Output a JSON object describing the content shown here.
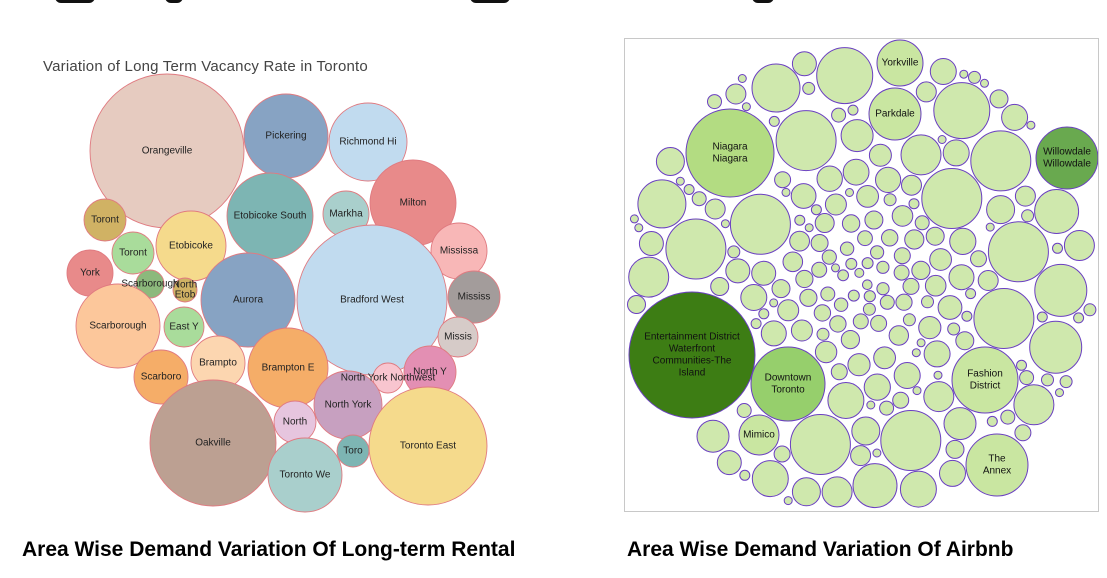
{
  "captions": {
    "left": "Area Wise Demand Variation Of Long-term Rental",
    "right": "Area Wise Demand Variation Of Airbnb"
  },
  "chart_data": [
    {
      "type": "bubble",
      "title": "Variation of Long Term Vacancy Rate in Toronto",
      "bubbles": [
        {
          "label": "Orangeville",
          "color": "#e6cbc0"
        },
        {
          "label": "Pickering",
          "color": "#87a3c3"
        },
        {
          "label": "Richmond Hi",
          "color": "#c1dbef"
        },
        {
          "label": "Etobicoke South",
          "color": "#7db5b3"
        },
        {
          "label": "Markha",
          "color": "#a9cfcc"
        },
        {
          "label": "Milton",
          "color": "#e88a8a"
        },
        {
          "label": "Toront",
          "color": "#d0b264"
        },
        {
          "label": "Etobicoke",
          "color": "#f5da8c"
        },
        {
          "label": "Toront",
          "color": "#a9dc9b"
        },
        {
          "label": "Mississa",
          "color": "#f8b7b7"
        },
        {
          "label": "York",
          "color": "#e88a8a"
        },
        {
          "label": "Scarborough",
          "color": "#8cb97c"
        },
        {
          "label": "North Etob",
          "color": "#d0b264"
        },
        {
          "label": "Aurora",
          "color": "#87a3c3"
        },
        {
          "label": "Bradford West",
          "color": "#c1dbef"
        },
        {
          "label": "Mississ",
          "color": "#a39c9b"
        },
        {
          "label": "Scarborough",
          "color": "#fcc79b"
        },
        {
          "label": "East Y",
          "color": "#a9dc9b"
        },
        {
          "label": "Missis",
          "color": "#d6cbc8"
        },
        {
          "label": "Brampto",
          "color": "#fcd6b0"
        },
        {
          "label": "Brampton E",
          "color": "#f5ad68"
        },
        {
          "label": "Scarboro",
          "color": "#f5ad68"
        },
        {
          "label": "North York Northwest",
          "color": "#f8c5cf"
        },
        {
          "label": "North Y",
          "color": "#e38fb3"
        },
        {
          "label": "North York",
          "color": "#c7a0c0"
        },
        {
          "label": "Oakville",
          "color": "#bca092"
        },
        {
          "label": "North",
          "color": "#e6c5de"
        },
        {
          "label": "Toro",
          "color": "#7db5b3"
        },
        {
          "label": "Toronto East",
          "color": "#f5da8c"
        },
        {
          "label": "Toronto We",
          "color": "#a9cfcc"
        }
      ]
    },
    {
      "type": "bubble",
      "bubbles": [
        {
          "label": "Yorkville",
          "lines": [
            "Yorkville"
          ],
          "color": "#c9e6a1"
        },
        {
          "label": "Parkdale",
          "lines": [
            "Parkdale"
          ],
          "color": "#c9e6a1"
        },
        {
          "label": "Niagara Niagara",
          "lines": [
            "Niagara",
            "Niagara"
          ],
          "color": "#b3dc82"
        },
        {
          "label": "Willowdale Willowdale",
          "lines": [
            "Willowdale",
            "Willowdale"
          ],
          "color": "#69a94f"
        },
        {
          "label": "Entertainment District Waterfront Communities-The Island",
          "lines": [
            "Entertainment District",
            "Waterfront",
            "Communities-The",
            "Island"
          ],
          "color": "#3d7d14"
        },
        {
          "label": "Downtown Toronto",
          "lines": [
            "Downtown",
            "Toronto"
          ],
          "color": "#96cf6c"
        },
        {
          "label": "Fashion District",
          "lines": [
            "Fashion",
            "District"
          ],
          "color": "#c9e6a1"
        },
        {
          "label": "Mimico",
          "lines": [
            "Mimico"
          ],
          "color": "#c9e6a1"
        },
        {
          "label": "The Annex",
          "lines": [
            "The",
            "Annex"
          ],
          "color": "#c9e6a1"
        }
      ],
      "background_bubble_color": "#cfe8ad",
      "bubble_border_color": "#6a3fc1"
    }
  ]
}
